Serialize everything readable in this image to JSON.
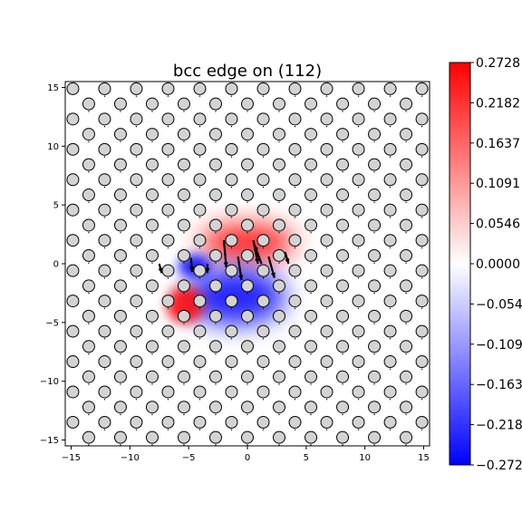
{
  "chart_data": {
    "type": "heatmap",
    "title": "bcc edge on (112)",
    "xlabel": "",
    "ylabel": "",
    "xlim": [
      -15.5,
      15.5
    ],
    "ylim": [
      -15.5,
      15.5
    ],
    "xticks": [
      -15,
      -10,
      -5,
      0,
      5,
      10,
      15
    ],
    "yticks": [
      -15,
      -10,
      -5,
      0,
      5,
      10,
      15
    ],
    "xtick_labels": [
      "−15",
      "−10",
      "−5",
      "0",
      "5",
      "10",
      "15"
    ],
    "ytick_labels": [
      "−15",
      "−10",
      "−5",
      "0",
      "5",
      "10",
      "15"
    ],
    "grid": false,
    "colormap": "bwr",
    "colorbar": {
      "min": -0.2728,
      "max": 0.2728,
      "ticks": [
        0.2728,
        0.2182,
        0.1637,
        0.1091,
        0.0546,
        0.0,
        -0.0546,
        -0.1091,
        -0.1637,
        -0.2182,
        -0.2728
      ],
      "tick_labels": [
        "0.2728",
        "0.2182",
        "0.1637",
        "0.1091",
        "0.0546",
        "0.0000",
        "−0.0546",
        "−0.1091",
        "−0.1637",
        "−0.2182",
        "−0.2728"
      ]
    },
    "atoms": {
      "lattice_a1": [
        2.7,
        0.0
      ],
      "lattice_a2": [
        1.35,
        1.29
      ],
      "fill": "#d3d3d3",
      "edge": "#000000"
    },
    "strain_blobs": [
      {
        "x": 0.0,
        "y": 1.8,
        "sigma_x": 4.0,
        "sigma_y": 1.6,
        "value": 0.2728
      },
      {
        "x": -1.0,
        "y": -2.8,
        "sigma_x": 4.2,
        "sigma_y": 2.4,
        "value": -0.2728
      },
      {
        "x": -4.5,
        "y": -0.2,
        "sigma_x": 1.4,
        "sigma_y": 1.0,
        "value": -0.2728
      },
      {
        "x": -5.3,
        "y": -3.5,
        "sigma_x": 1.6,
        "sigma_y": 1.6,
        "value": 0.2728
      }
    ],
    "displacement_arrows": [
      {
        "x": -2.0,
        "y": 2.0,
        "dx": 0.2,
        "dy": -2.3
      },
      {
        "x": 0.5,
        "y": 2.0,
        "dx": 0.4,
        "dy": -2.0
      },
      {
        "x": -0.8,
        "y": 0.6,
        "dx": 0.3,
        "dy": -2.0
      },
      {
        "x": 1.8,
        "y": 0.6,
        "dx": 0.5,
        "dy": -1.8
      },
      {
        "x": 1.2,
        "y": 0.0,
        "dx": -0.6,
        "dy": 1.6
      },
      {
        "x": -4.8,
        "y": 0.5,
        "dx": 0.1,
        "dy": -1.2
      },
      {
        "x": -3.4,
        "y": 0.0,
        "dx": 0.0,
        "dy": -0.8
      },
      {
        "x": -7.5,
        "y": 0.0,
        "dx": 0.2,
        "dy": -0.8
      },
      {
        "x": 3.2,
        "y": 1.0,
        "dx": 0.3,
        "dy": -1.0
      }
    ]
  }
}
